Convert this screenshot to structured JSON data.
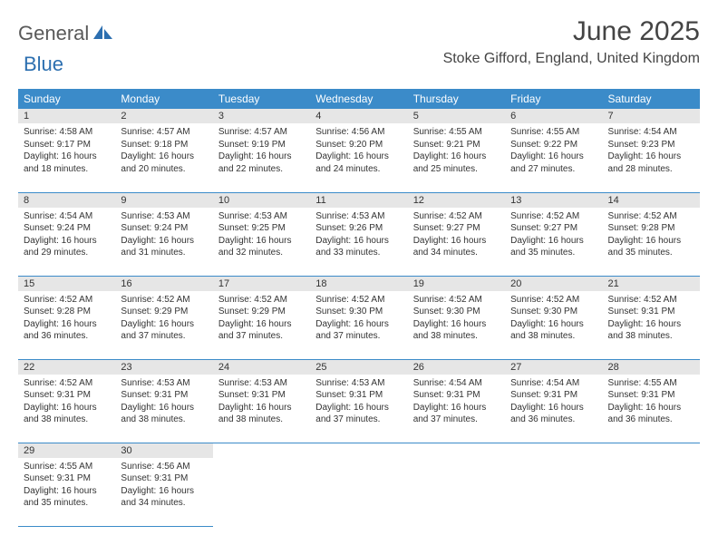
{
  "logo": {
    "word1": "General",
    "word2": "Blue"
  },
  "colors": {
    "header_bg": "#3b8bc9",
    "header_text": "#ffffff",
    "daynum_bg": "#e6e6e6",
    "row_border": "#3b8bc9",
    "logo_gray": "#595959",
    "logo_blue": "#2c6fb0",
    "body_text": "#333333",
    "page_bg": "#ffffff"
  },
  "title": "June 2025",
  "location": "Stoke Gifford, England, United Kingdom",
  "weekdays": [
    "Sunday",
    "Monday",
    "Tuesday",
    "Wednesday",
    "Thursday",
    "Friday",
    "Saturday"
  ],
  "days": [
    {
      "n": "1",
      "sr": "4:58 AM",
      "ss": "9:17 PM",
      "dl": "16 hours and 18 minutes."
    },
    {
      "n": "2",
      "sr": "4:57 AM",
      "ss": "9:18 PM",
      "dl": "16 hours and 20 minutes."
    },
    {
      "n": "3",
      "sr": "4:57 AM",
      "ss": "9:19 PM",
      "dl": "16 hours and 22 minutes."
    },
    {
      "n": "4",
      "sr": "4:56 AM",
      "ss": "9:20 PM",
      "dl": "16 hours and 24 minutes."
    },
    {
      "n": "5",
      "sr": "4:55 AM",
      "ss": "9:21 PM",
      "dl": "16 hours and 25 minutes."
    },
    {
      "n": "6",
      "sr": "4:55 AM",
      "ss": "9:22 PM",
      "dl": "16 hours and 27 minutes."
    },
    {
      "n": "7",
      "sr": "4:54 AM",
      "ss": "9:23 PM",
      "dl": "16 hours and 28 minutes."
    },
    {
      "n": "8",
      "sr": "4:54 AM",
      "ss": "9:24 PM",
      "dl": "16 hours and 29 minutes."
    },
    {
      "n": "9",
      "sr": "4:53 AM",
      "ss": "9:24 PM",
      "dl": "16 hours and 31 minutes."
    },
    {
      "n": "10",
      "sr": "4:53 AM",
      "ss": "9:25 PM",
      "dl": "16 hours and 32 minutes."
    },
    {
      "n": "11",
      "sr": "4:53 AM",
      "ss": "9:26 PM",
      "dl": "16 hours and 33 minutes."
    },
    {
      "n": "12",
      "sr": "4:52 AM",
      "ss": "9:27 PM",
      "dl": "16 hours and 34 minutes."
    },
    {
      "n": "13",
      "sr": "4:52 AM",
      "ss": "9:27 PM",
      "dl": "16 hours and 35 minutes."
    },
    {
      "n": "14",
      "sr": "4:52 AM",
      "ss": "9:28 PM",
      "dl": "16 hours and 35 minutes."
    },
    {
      "n": "15",
      "sr": "4:52 AM",
      "ss": "9:28 PM",
      "dl": "16 hours and 36 minutes."
    },
    {
      "n": "16",
      "sr": "4:52 AM",
      "ss": "9:29 PM",
      "dl": "16 hours and 37 minutes."
    },
    {
      "n": "17",
      "sr": "4:52 AM",
      "ss": "9:29 PM",
      "dl": "16 hours and 37 minutes."
    },
    {
      "n": "18",
      "sr": "4:52 AM",
      "ss": "9:30 PM",
      "dl": "16 hours and 37 minutes."
    },
    {
      "n": "19",
      "sr": "4:52 AM",
      "ss": "9:30 PM",
      "dl": "16 hours and 38 minutes."
    },
    {
      "n": "20",
      "sr": "4:52 AM",
      "ss": "9:30 PM",
      "dl": "16 hours and 38 minutes."
    },
    {
      "n": "21",
      "sr": "4:52 AM",
      "ss": "9:31 PM",
      "dl": "16 hours and 38 minutes."
    },
    {
      "n": "22",
      "sr": "4:52 AM",
      "ss": "9:31 PM",
      "dl": "16 hours and 38 minutes."
    },
    {
      "n": "23",
      "sr": "4:53 AM",
      "ss": "9:31 PM",
      "dl": "16 hours and 38 minutes."
    },
    {
      "n": "24",
      "sr": "4:53 AM",
      "ss": "9:31 PM",
      "dl": "16 hours and 38 minutes."
    },
    {
      "n": "25",
      "sr": "4:53 AM",
      "ss": "9:31 PM",
      "dl": "16 hours and 37 minutes."
    },
    {
      "n": "26",
      "sr": "4:54 AM",
      "ss": "9:31 PM",
      "dl": "16 hours and 37 minutes."
    },
    {
      "n": "27",
      "sr": "4:54 AM",
      "ss": "9:31 PM",
      "dl": "16 hours and 36 minutes."
    },
    {
      "n": "28",
      "sr": "4:55 AM",
      "ss": "9:31 PM",
      "dl": "16 hours and 36 minutes."
    },
    {
      "n": "29",
      "sr": "4:55 AM",
      "ss": "9:31 PM",
      "dl": "16 hours and 35 minutes."
    },
    {
      "n": "30",
      "sr": "4:56 AM",
      "ss": "9:31 PM",
      "dl": "16 hours and 34 minutes."
    }
  ],
  "labels": {
    "sunrise": "Sunrise: ",
    "sunset": "Sunset: ",
    "daylight": "Daylight: "
  }
}
